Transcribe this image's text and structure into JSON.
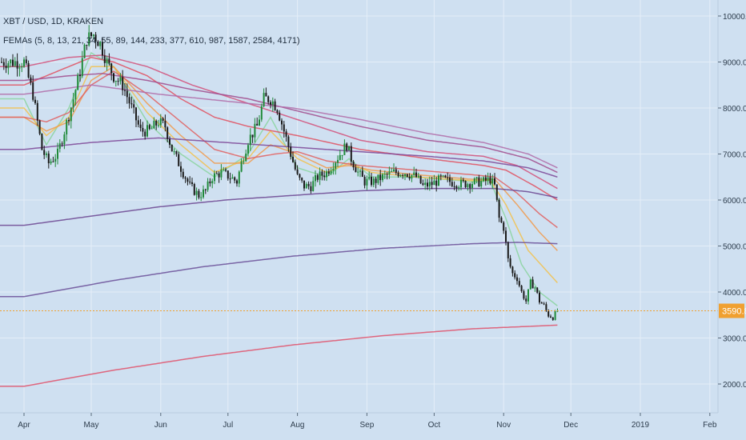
{
  "header": {
    "symbol_line": "XBT / USD, 1D, KRAKEN",
    "indicator_line": "FEMAs (5, 8, 13, 21, 34, 55, 89, 144, 233, 377, 610, 987, 1587, 2584, 4171)"
  },
  "chart_data": {
    "type": "candlestick",
    "title": "XBT / USD, 1D, KRAKEN",
    "indicator": "FEMAs (5, 8, 13, 21, 34, 55, 89, 144, 233, 377, 610, 987, 1587, 2584, 4171)",
    "ylim": [
      1400,
      10600
    ],
    "y_ticks": [
      2000,
      3000,
      4000,
      5000,
      6000,
      7000,
      8000,
      9000,
      10000
    ],
    "y_tick_labels": [
      "2000.0",
      "3000.0",
      "4000.0",
      "5000.0",
      "6000.0",
      "7000.0",
      "8000.0",
      "9000.0",
      "10000.0"
    ],
    "x_range_days": [
      0,
      320
    ],
    "x_ticks": [
      {
        "label": "Apr",
        "day": 0
      },
      {
        "label": "May",
        "day": 30
      },
      {
        "label": "Jun",
        "day": 61
      },
      {
        "label": "Jul",
        "day": 91
      },
      {
        "label": "Aug",
        "day": 122
      },
      {
        "label": "Sep",
        "day": 153
      },
      {
        "label": "Oct",
        "day": 183
      },
      {
        "label": "Nov",
        "day": 214
      },
      {
        "label": "Dec",
        "day": 244
      },
      {
        "label": "2019",
        "day": 275
      },
      {
        "label": "Feb",
        "day": 306
      }
    ],
    "last_price": 3590.8,
    "last_price_label": "3590.8",
    "price_keyframes": [
      [
        0,
        9000
      ],
      [
        4,
        8300
      ],
      [
        8,
        7100
      ],
      [
        11,
        6800
      ],
      [
        15,
        7000
      ],
      [
        18,
        7500
      ],
      [
        22,
        8200
      ],
      [
        25,
        8800
      ],
      [
        28,
        9500
      ],
      [
        31,
        9600
      ],
      [
        34,
        9400
      ],
      [
        37,
        9000
      ],
      [
        40,
        8700
      ],
      [
        44,
        8500
      ],
      [
        48,
        8000
      ],
      [
        52,
        7500
      ],
      [
        56,
        7500
      ],
      [
        60,
        7700
      ],
      [
        63,
        7600
      ],
      [
        66,
        7100
      ],
      [
        70,
        6700
      ],
      [
        74,
        6300
      ],
      [
        78,
        6100
      ],
      [
        81,
        6200
      ],
      [
        84,
        6500
      ],
      [
        88,
        6600
      ],
      [
        92,
        6500
      ],
      [
        95,
        6400
      ],
      [
        97,
        6800
      ],
      [
        100,
        7300
      ],
      [
        104,
        7600
      ],
      [
        107,
        8200
      ],
      [
        110,
        8200
      ],
      [
        113,
        8000
      ],
      [
        116,
        7500
      ],
      [
        119,
        7000
      ],
      [
        122,
        6500
      ],
      [
        125,
        6300
      ],
      [
        128,
        6300
      ],
      [
        131,
        6500
      ],
      [
        135,
        6600
      ],
      [
        138,
        6800
      ],
      [
        141,
        7000
      ],
      [
        144,
        7200
      ],
      [
        146,
        6900
      ],
      [
        149,
        6600
      ],
      [
        152,
        6400
      ],
      [
        156,
        6400
      ],
      [
        160,
        6500
      ],
      [
        165,
        6600
      ],
      [
        170,
        6600
      ],
      [
        175,
        6500
      ],
      [
        178,
        6300
      ],
      [
        182,
        6350
      ],
      [
        186,
        6450
      ],
      [
        190,
        6400
      ],
      [
        195,
        6350
      ],
      [
        200,
        6380
      ],
      [
        205,
        6400
      ],
      [
        208,
        6450
      ],
      [
        210,
        6300
      ],
      [
        212,
        5600
      ],
      [
        214,
        5400
      ],
      [
        216,
        4700
      ],
      [
        218,
        4400
      ],
      [
        220,
        4300
      ],
      [
        222,
        4000
      ],
      [
        224,
        3800
      ],
      [
        226,
        4200
      ],
      [
        228,
        4100
      ],
      [
        230,
        3800
      ],
      [
        232,
        3700
      ],
      [
        234,
        3500
      ],
      [
        236,
        3450
      ],
      [
        238,
        3600
      ]
    ],
    "ema_lines": [
      {
        "color": "#8bd3a0",
        "keyframes": [
          [
            0,
            8200
          ],
          [
            10,
            7200
          ],
          [
            20,
            8000
          ],
          [
            30,
            9200
          ],
          [
            40,
            8900
          ],
          [
            55,
            7700
          ],
          [
            70,
            7000
          ],
          [
            85,
            6500
          ],
          [
            100,
            7000
          ],
          [
            110,
            7800
          ],
          [
            122,
            6700
          ],
          [
            135,
            6500
          ],
          [
            145,
            6900
          ],
          [
            155,
            6500
          ],
          [
            175,
            6500
          ],
          [
            200,
            6400
          ],
          [
            208,
            6420
          ],
          [
            215,
            5600
          ],
          [
            222,
            4600
          ],
          [
            230,
            4000
          ],
          [
            238,
            3700
          ]
        ]
      },
      {
        "color": "#f2c14e",
        "keyframes": [
          [
            0,
            8000
          ],
          [
            10,
            7400
          ],
          [
            20,
            7800
          ],
          [
            30,
            8900
          ],
          [
            40,
            8900
          ],
          [
            55,
            7900
          ],
          [
            70,
            7200
          ],
          [
            85,
            6600
          ],
          [
            100,
            6900
          ],
          [
            110,
            7500
          ],
          [
            122,
            6900
          ],
          [
            135,
            6600
          ],
          [
            145,
            6800
          ],
          [
            155,
            6600
          ],
          [
            175,
            6500
          ],
          [
            200,
            6420
          ],
          [
            208,
            6430
          ],
          [
            215,
            5900
          ],
          [
            225,
            4900
          ],
          [
            238,
            4200
          ]
        ]
      },
      {
        "color": "#f19a4c",
        "keyframes": [
          [
            0,
            7800
          ],
          [
            10,
            7500
          ],
          [
            20,
            7700
          ],
          [
            30,
            8600
          ],
          [
            40,
            8900
          ],
          [
            55,
            8100
          ],
          [
            70,
            7400
          ],
          [
            85,
            6800
          ],
          [
            100,
            6800
          ],
          [
            110,
            7200
          ],
          [
            122,
            7000
          ],
          [
            135,
            6700
          ],
          [
            145,
            6750
          ],
          [
            155,
            6650
          ],
          [
            175,
            6550
          ],
          [
            200,
            6450
          ],
          [
            210,
            6450
          ],
          [
            220,
            5900
          ],
          [
            230,
            5300
          ],
          [
            238,
            4900
          ]
        ]
      },
      {
        "color": "#e06060",
        "keyframes": [
          [
            0,
            7800
          ],
          [
            10,
            7700
          ],
          [
            20,
            7900
          ],
          [
            30,
            8500
          ],
          [
            40,
            8800
          ],
          [
            55,
            8300
          ],
          [
            70,
            7700
          ],
          [
            85,
            7100
          ],
          [
            100,
            6900
          ],
          [
            112,
            7000
          ],
          [
            122,
            7050
          ],
          [
            135,
            6850
          ],
          [
            150,
            6750
          ],
          [
            175,
            6650
          ],
          [
            200,
            6550
          ],
          [
            210,
            6500
          ],
          [
            220,
            6150
          ],
          [
            230,
            5700
          ],
          [
            238,
            5400
          ]
        ]
      },
      {
        "color": "#e05060",
        "keyframes": [
          [
            0,
            8500
          ],
          [
            10,
            8700
          ],
          [
            20,
            8900
          ],
          [
            30,
            9100
          ],
          [
            40,
            9000
          ],
          [
            55,
            8700
          ],
          [
            70,
            8200
          ],
          [
            85,
            7800
          ],
          [
            100,
            7600
          ],
          [
            122,
            7400
          ],
          [
            150,
            7100
          ],
          [
            180,
            6900
          ],
          [
            205,
            6750
          ],
          [
            215,
            6650
          ],
          [
            228,
            6300
          ],
          [
            238,
            6000
          ]
        ]
      },
      {
        "color": "#d2507a",
        "keyframes": [
          [
            0,
            8900
          ],
          [
            20,
            9100
          ],
          [
            35,
            9150
          ],
          [
            55,
            8900
          ],
          [
            75,
            8500
          ],
          [
            100,
            8100
          ],
          [
            125,
            7700
          ],
          [
            150,
            7300
          ],
          [
            180,
            7050
          ],
          [
            205,
            6950
          ],
          [
            220,
            6750
          ],
          [
            238,
            6250
          ]
        ]
      },
      {
        "color": "#a04a8c",
        "keyframes": [
          [
            0,
            8600
          ],
          [
            20,
            8700
          ],
          [
            35,
            8750
          ],
          [
            55,
            8600
          ],
          [
            75,
            8400
          ],
          [
            100,
            8200
          ],
          [
            125,
            7900
          ],
          [
            150,
            7600
          ],
          [
            180,
            7300
          ],
          [
            205,
            7150
          ],
          [
            225,
            6900
          ],
          [
            238,
            6600
          ]
        ]
      },
      {
        "color": "#b06ba8",
        "keyframes": [
          [
            0,
            8300
          ],
          [
            30,
            8500
          ],
          [
            60,
            8300
          ],
          [
            90,
            8150
          ],
          [
            120,
            8000
          ],
          [
            150,
            7750
          ],
          [
            180,
            7450
          ],
          [
            205,
            7250
          ],
          [
            225,
            7000
          ],
          [
            238,
            6700
          ]
        ]
      },
      {
        "color": "#7d4596",
        "keyframes": [
          [
            0,
            7100
          ],
          [
            30,
            7250
          ],
          [
            60,
            7350
          ],
          [
            90,
            7250
          ],
          [
            120,
            7150
          ],
          [
            150,
            7050
          ],
          [
            180,
            6950
          ],
          [
            205,
            6850
          ],
          [
            225,
            6700
          ],
          [
            238,
            6500
          ]
        ]
      },
      {
        "color": "#6b4490",
        "keyframes": [
          [
            0,
            5450
          ],
          [
            30,
            5650
          ],
          [
            60,
            5850
          ],
          [
            90,
            6000
          ],
          [
            120,
            6100
          ],
          [
            150,
            6200
          ],
          [
            180,
            6250
          ],
          [
            210,
            6250
          ],
          [
            225,
            6180
          ],
          [
            238,
            6050
          ]
        ]
      },
      {
        "color": "#6a4d98",
        "keyframes": [
          [
            0,
            3900
          ],
          [
            40,
            4250
          ],
          [
            80,
            4550
          ],
          [
            120,
            4780
          ],
          [
            160,
            4950
          ],
          [
            200,
            5050
          ],
          [
            220,
            5080
          ],
          [
            238,
            5050
          ]
        ]
      },
      {
        "color": "#e0506a",
        "keyframes": [
          [
            0,
            1950
          ],
          [
            40,
            2300
          ],
          [
            80,
            2600
          ],
          [
            120,
            2850
          ],
          [
            160,
            3050
          ],
          [
            200,
            3200
          ],
          [
            238,
            3280
          ]
        ]
      }
    ]
  }
}
